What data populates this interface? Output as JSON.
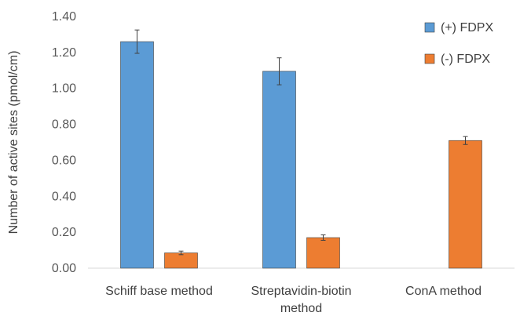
{
  "chart_data": {
    "type": "bar",
    "title": "",
    "xlabel": "",
    "ylabel": "Number of active sites (pmol/cm)",
    "ylim": [
      0,
      1.4
    ],
    "yticks": [
      "0.00",
      "0.20",
      "0.40",
      "0.60",
      "0.80",
      "1.00",
      "1.20",
      "1.40"
    ],
    "grid": false,
    "legend_position": "top-right",
    "categories": [
      [
        "Schiff base method"
      ],
      [
        "Streptavidin-biotin",
        "method"
      ],
      [
        "ConA method"
      ]
    ],
    "series": [
      {
        "name": "(+) FDPX",
        "color": "#5B9BD5",
        "values": [
          1.26,
          1.095,
          null
        ],
        "errors": [
          0.065,
          0.075,
          null
        ]
      },
      {
        "name": "(-) FDPX",
        "color": "#ED7D31",
        "values": [
          0.085,
          0.17,
          0.71
        ],
        "errors": [
          0.01,
          0.015,
          0.022
        ]
      }
    ]
  }
}
